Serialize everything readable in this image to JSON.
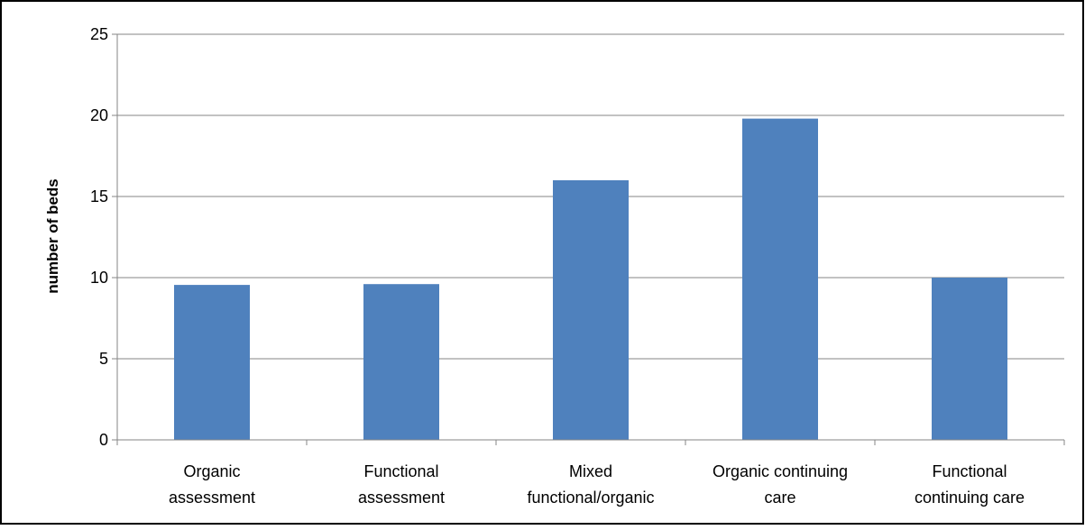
{
  "chart_data": {
    "type": "bar",
    "title": "",
    "xlabel": "",
    "ylabel": "number of beds",
    "ylim": [
      0,
      25
    ],
    "yticks": [
      0,
      5,
      10,
      15,
      20,
      25
    ],
    "grid": true,
    "legend": "none",
    "categories": [
      [
        "Organic",
        "assessment"
      ],
      [
        "Functional",
        "assessment"
      ],
      [
        "Mixed",
        "functional/organic"
      ],
      [
        "Organic continuing",
        "care"
      ],
      [
        "Functional",
        "continuing care"
      ]
    ],
    "series": [
      {
        "values": [
          9.55,
          9.6,
          16.0,
          19.8,
          10.0
        ]
      }
    ],
    "colors": {
      "bar": "#4f81bd",
      "grid": "#868686",
      "axis": "#868686",
      "border": "#000000"
    }
  }
}
